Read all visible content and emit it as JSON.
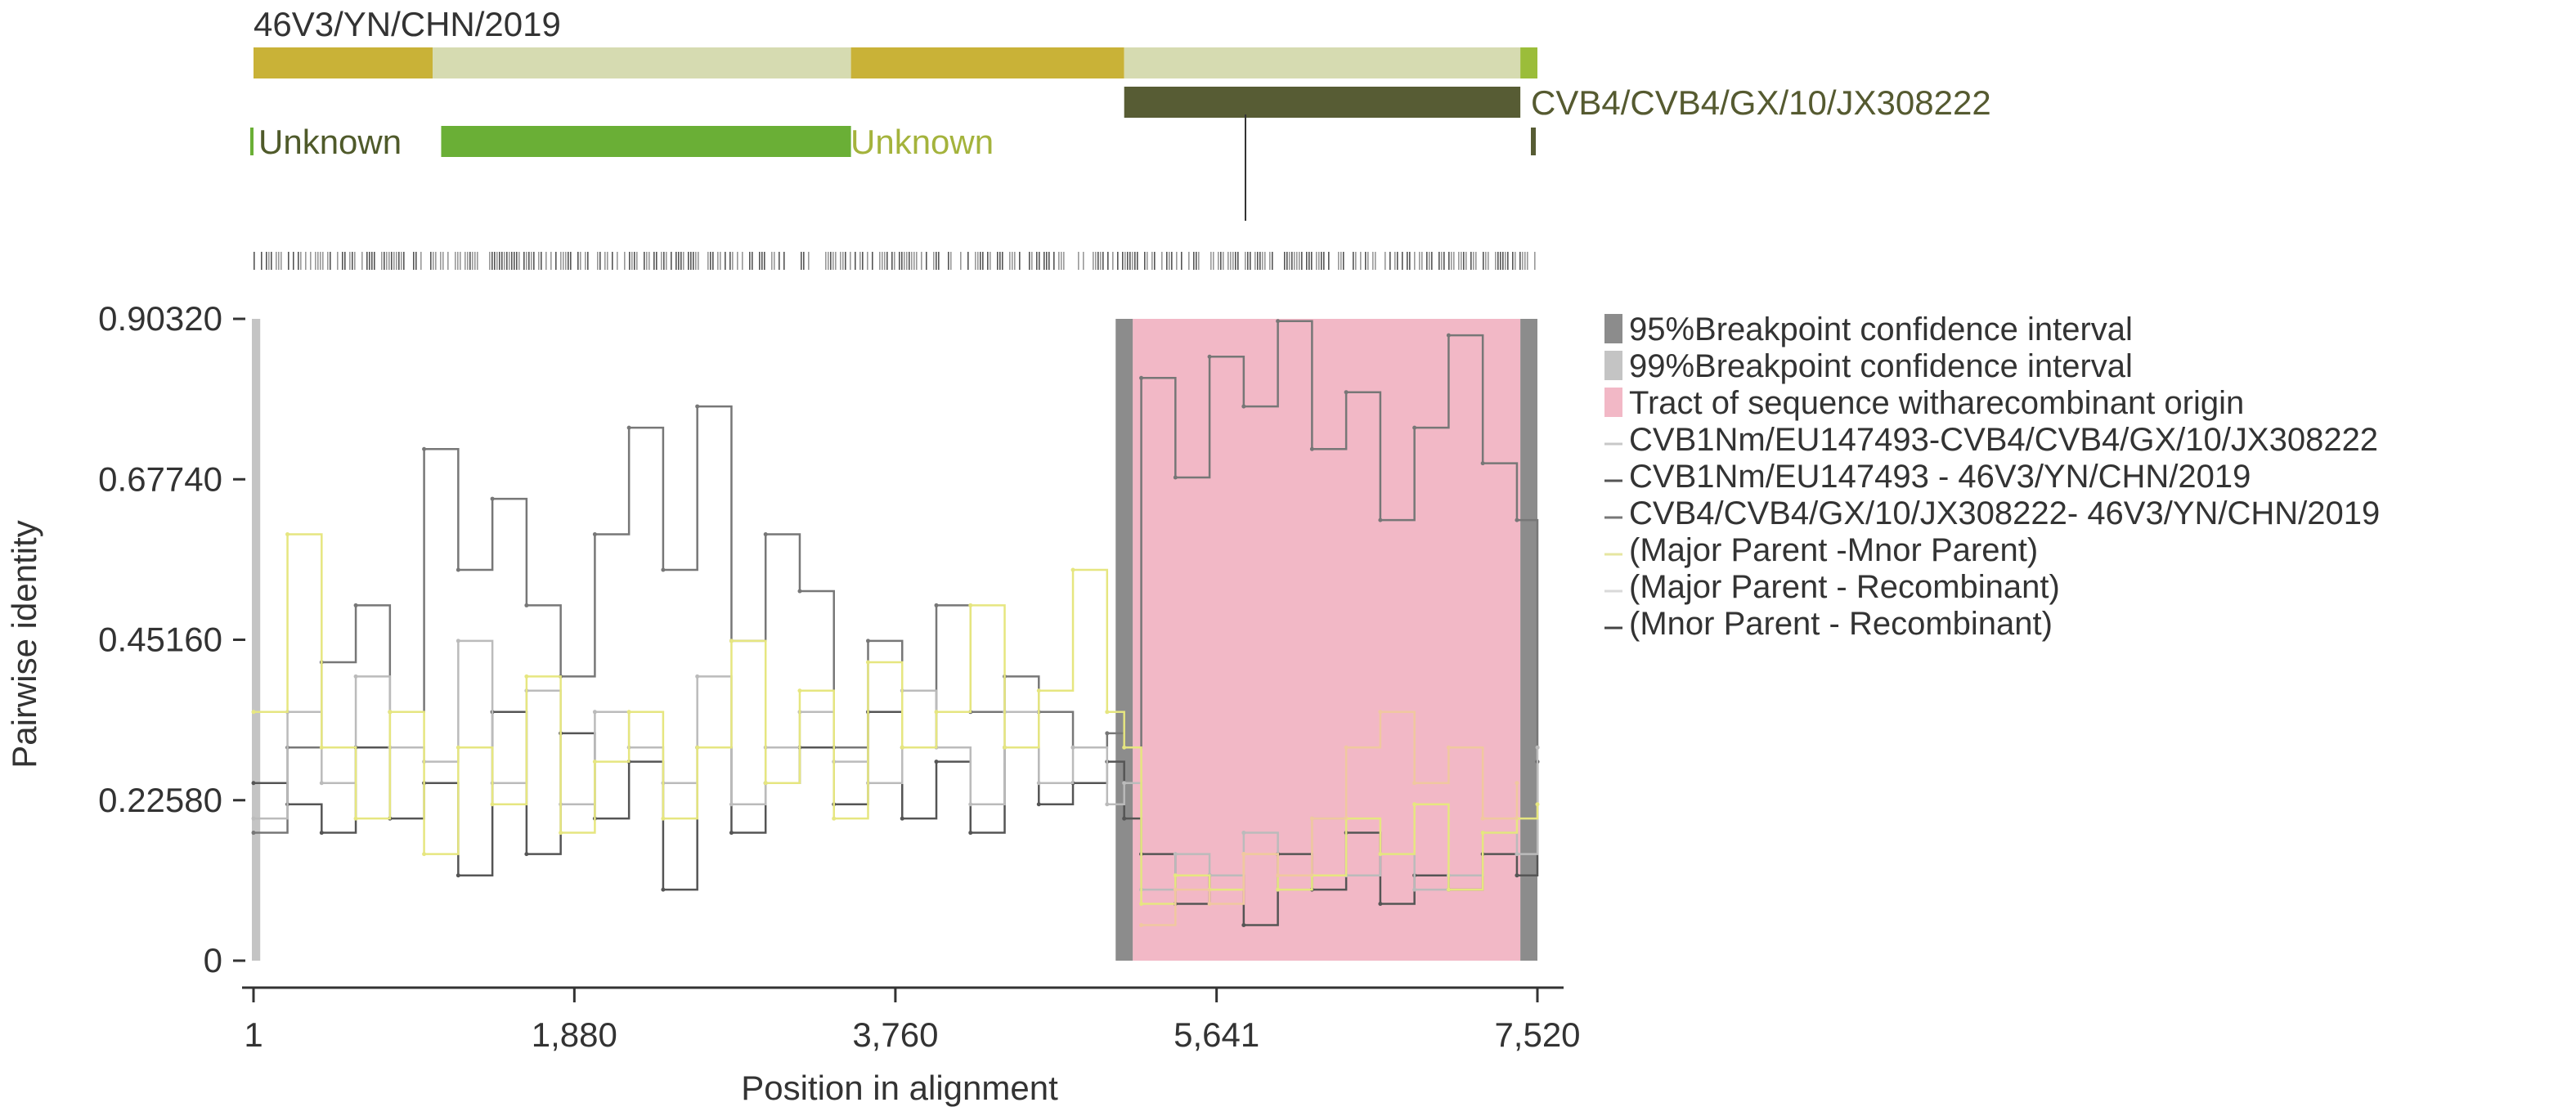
{
  "sequence": {
    "recombinant_label": "46V3/YN/CHN/2019",
    "minor_parent_label": "CVB4/CVB4/GX/10/JX308222",
    "major_parent_left_label": "Unknown",
    "major_parent_right_label": "Unknown",
    "segments": [
      {
        "name": "recombinant",
        "from": 1,
        "to": 1050,
        "color": "#c9b237"
      },
      {
        "name": "recombinant",
        "from": 1050,
        "to": 3500,
        "color": "#d6dbb1"
      },
      {
        "name": "recombinant",
        "from": 3500,
        "to": 5100,
        "color": "#c9b237"
      },
      {
        "name": "recombinant",
        "from": 5100,
        "to": 7420,
        "color": "#d6dbb1"
      },
      {
        "name": "recombinant",
        "from": 7420,
        "to": 7520,
        "color": "#9bbd3a"
      },
      {
        "name": "minor-parent",
        "from": 5100,
        "to": 7420,
        "color": "#575c34"
      },
      {
        "name": "major-parent",
        "from": 1100,
        "to": 3500,
        "color": "#6aaf36"
      }
    ]
  },
  "legend": [
    {
      "label": "95%Breakpoint confidence interval",
      "symbol": "box",
      "color": "#8c8c8c"
    },
    {
      "label": "99%Breakpoint confidence interval",
      "symbol": "box",
      "color": "#c4c4c4"
    },
    {
      "label": "Tract of sequence witharecombinant origin",
      "symbol": "box",
      "color": "#f2b8c6"
    },
    {
      "label": "CVB1Nm/EU147493-CVB4/CVB4/GX/10/JX308222",
      "symbol": "line",
      "color": "#c8c8c8"
    },
    {
      "label": "CVB1Nm/EU147493 - 46V3/YN/CHN/2019",
      "symbol": "line",
      "color": "#555555"
    },
    {
      "label": "CVB4/CVB4/GX/10/JX308222- 46V3/YN/CHN/2019",
      "symbol": "line",
      "color": "#777777"
    },
    {
      "label": "(Major Parent -Mnor Parent)",
      "symbol": "line",
      "color": "#e6e6a0"
    },
    {
      "label": "(Major Parent - Recombinant)",
      "symbol": "line",
      "color": "#d9d9d9"
    },
    {
      "label": "(Mnor Parent - Recombinant)",
      "symbol": "line",
      "color": "#444444"
    }
  ],
  "chart_data": {
    "type": "line",
    "xlabel": "Position in alignment",
    "ylabel": "Pairwise identity",
    "xlim": [
      1,
      7520
    ],
    "ylim": [
      0,
      0.9032
    ],
    "x_ticks": [
      1,
      1880,
      3760,
      5641,
      7520
    ],
    "x_tick_labels": [
      "1",
      "1,880",
      "3,760",
      "5,641",
      "7,520"
    ],
    "y_ticks": [
      0,
      0.2258,
      0.4516,
      0.6774,
      0.9032
    ],
    "y_tick_labels": [
      "0",
      "0.22580",
      "0.45160",
      "0.67740",
      "0.90320"
    ],
    "breakpoint_ci_95": [
      [
        1,
        50
      ],
      [
        5050,
        5150
      ],
      [
        7420,
        7520
      ]
    ],
    "breakpoint_ci_99": [
      [
        1,
        50
      ]
    ],
    "recombinant_tract": [
      5150,
      7420
    ],
    "breakpoint_marker": 5850,
    "grid": false,
    "legend_position": "right",
    "series": [
      {
        "name": "CVB4/CVB4/GX/10/JX308222- 46V3/YN/CHN/2019",
        "color": "#777777",
        "x": [
          1,
          200,
          400,
          600,
          800,
          1000,
          1200,
          1400,
          1600,
          1800,
          2000,
          2200,
          2400,
          2600,
          2800,
          3000,
          3200,
          3400,
          3600,
          3800,
          4000,
          4200,
          4400,
          4600,
          4800,
          5000,
          5100,
          5200,
          5400,
          5600,
          5800,
          6000,
          6200,
          6400,
          6600,
          6800,
          7000,
          7200,
          7400,
          7520
        ],
        "y": [
          0.18,
          0.3,
          0.42,
          0.5,
          0.35,
          0.72,
          0.55,
          0.65,
          0.5,
          0.4,
          0.6,
          0.75,
          0.55,
          0.78,
          0.45,
          0.6,
          0.52,
          0.3,
          0.45,
          0.3,
          0.5,
          0.35,
          0.4,
          0.35,
          0.3,
          0.32,
          0.3,
          0.82,
          0.68,
          0.85,
          0.78,
          0.9,
          0.72,
          0.8,
          0.62,
          0.75,
          0.88,
          0.7,
          0.62,
          0.3
        ]
      },
      {
        "name": "CVB1Nm/EU147493 - 46V3/YN/CHN/2019",
        "color": "#555555",
        "x": [
          1,
          200,
          400,
          600,
          800,
          1000,
          1200,
          1400,
          1600,
          1800,
          2000,
          2200,
          2400,
          2600,
          2800,
          3000,
          3200,
          3400,
          3600,
          3800,
          4000,
          4200,
          4400,
          4600,
          4800,
          5000,
          5100,
          5200,
          5400,
          5600,
          5800,
          6000,
          6200,
          6400,
          6600,
          6800,
          7000,
          7200,
          7400,
          7520
        ],
        "y": [
          0.25,
          0.22,
          0.18,
          0.3,
          0.2,
          0.25,
          0.12,
          0.35,
          0.15,
          0.32,
          0.2,
          0.28,
          0.1,
          0.3,
          0.18,
          0.25,
          0.3,
          0.22,
          0.35,
          0.2,
          0.28,
          0.18,
          0.3,
          0.22,
          0.25,
          0.28,
          0.2,
          0.15,
          0.08,
          0.12,
          0.05,
          0.15,
          0.1,
          0.18,
          0.08,
          0.12,
          0.1,
          0.15,
          0.12,
          0.28
        ]
      },
      {
        "name": "CVB1Nm/EU147493-CVB4/CVB4/GX/10/JX308222",
        "color": "#bbbbbb",
        "x": [
          1,
          200,
          400,
          600,
          800,
          1000,
          1200,
          1400,
          1600,
          1800,
          2000,
          2200,
          2400,
          2600,
          2800,
          3000,
          3200,
          3400,
          3600,
          3800,
          4000,
          4200,
          4400,
          4600,
          4800,
          5000,
          5100,
          5200,
          5400,
          5600,
          5800,
          6000,
          6200,
          6400,
          6600,
          6800,
          7000,
          7200,
          7400,
          7520
        ],
        "y": [
          0.2,
          0.35,
          0.25,
          0.4,
          0.3,
          0.28,
          0.45,
          0.25,
          0.38,
          0.22,
          0.35,
          0.3,
          0.25,
          0.4,
          0.22,
          0.3,
          0.35,
          0.28,
          0.25,
          0.38,
          0.3,
          0.22,
          0.35,
          0.25,
          0.3,
          0.22,
          0.25,
          0.1,
          0.15,
          0.12,
          0.18,
          0.1,
          0.2,
          0.12,
          0.15,
          0.1,
          0.12,
          0.18,
          0.15,
          0.3
        ]
      },
      {
        "name": "(Major Parent -Mnor Parent)",
        "color": "#e6e680",
        "x": [
          1,
          200,
          400,
          600,
          800,
          1000,
          1200,
          1400,
          1600,
          1800,
          2000,
          2200,
          2400,
          2600,
          2800,
          3000,
          3200,
          3400,
          3600,
          3800,
          4000,
          4200,
          4400,
          4600,
          4800,
          5000,
          5100,
          5200,
          5400,
          5600,
          5800,
          6000,
          6200,
          6400,
          6600,
          6800,
          7000,
          7200,
          7400,
          7520
        ],
        "y": [
          0.35,
          0.6,
          0.3,
          0.2,
          0.35,
          0.15,
          0.3,
          0.22,
          0.4,
          0.18,
          0.28,
          0.35,
          0.2,
          0.3,
          0.45,
          0.25,
          0.38,
          0.2,
          0.42,
          0.3,
          0.35,
          0.5,
          0.3,
          0.38,
          0.55,
          0.35,
          0.3,
          0.08,
          0.12,
          0.1,
          0.15,
          0.1,
          0.12,
          0.2,
          0.15,
          0.22,
          0.1,
          0.18,
          0.2,
          0.22
        ]
      },
      {
        "name": "(Major Parent - Recombinant)",
        "color": "#f0c8a0",
        "x": [
          5200,
          5400,
          5600,
          5800,
          6000,
          6200,
          6400,
          6600,
          6800,
          7000,
          7200,
          7400
        ],
        "y": [
          0.05,
          0.1,
          0.08,
          0.15,
          0.12,
          0.2,
          0.3,
          0.35,
          0.25,
          0.3,
          0.2,
          0.25
        ]
      }
    ]
  }
}
